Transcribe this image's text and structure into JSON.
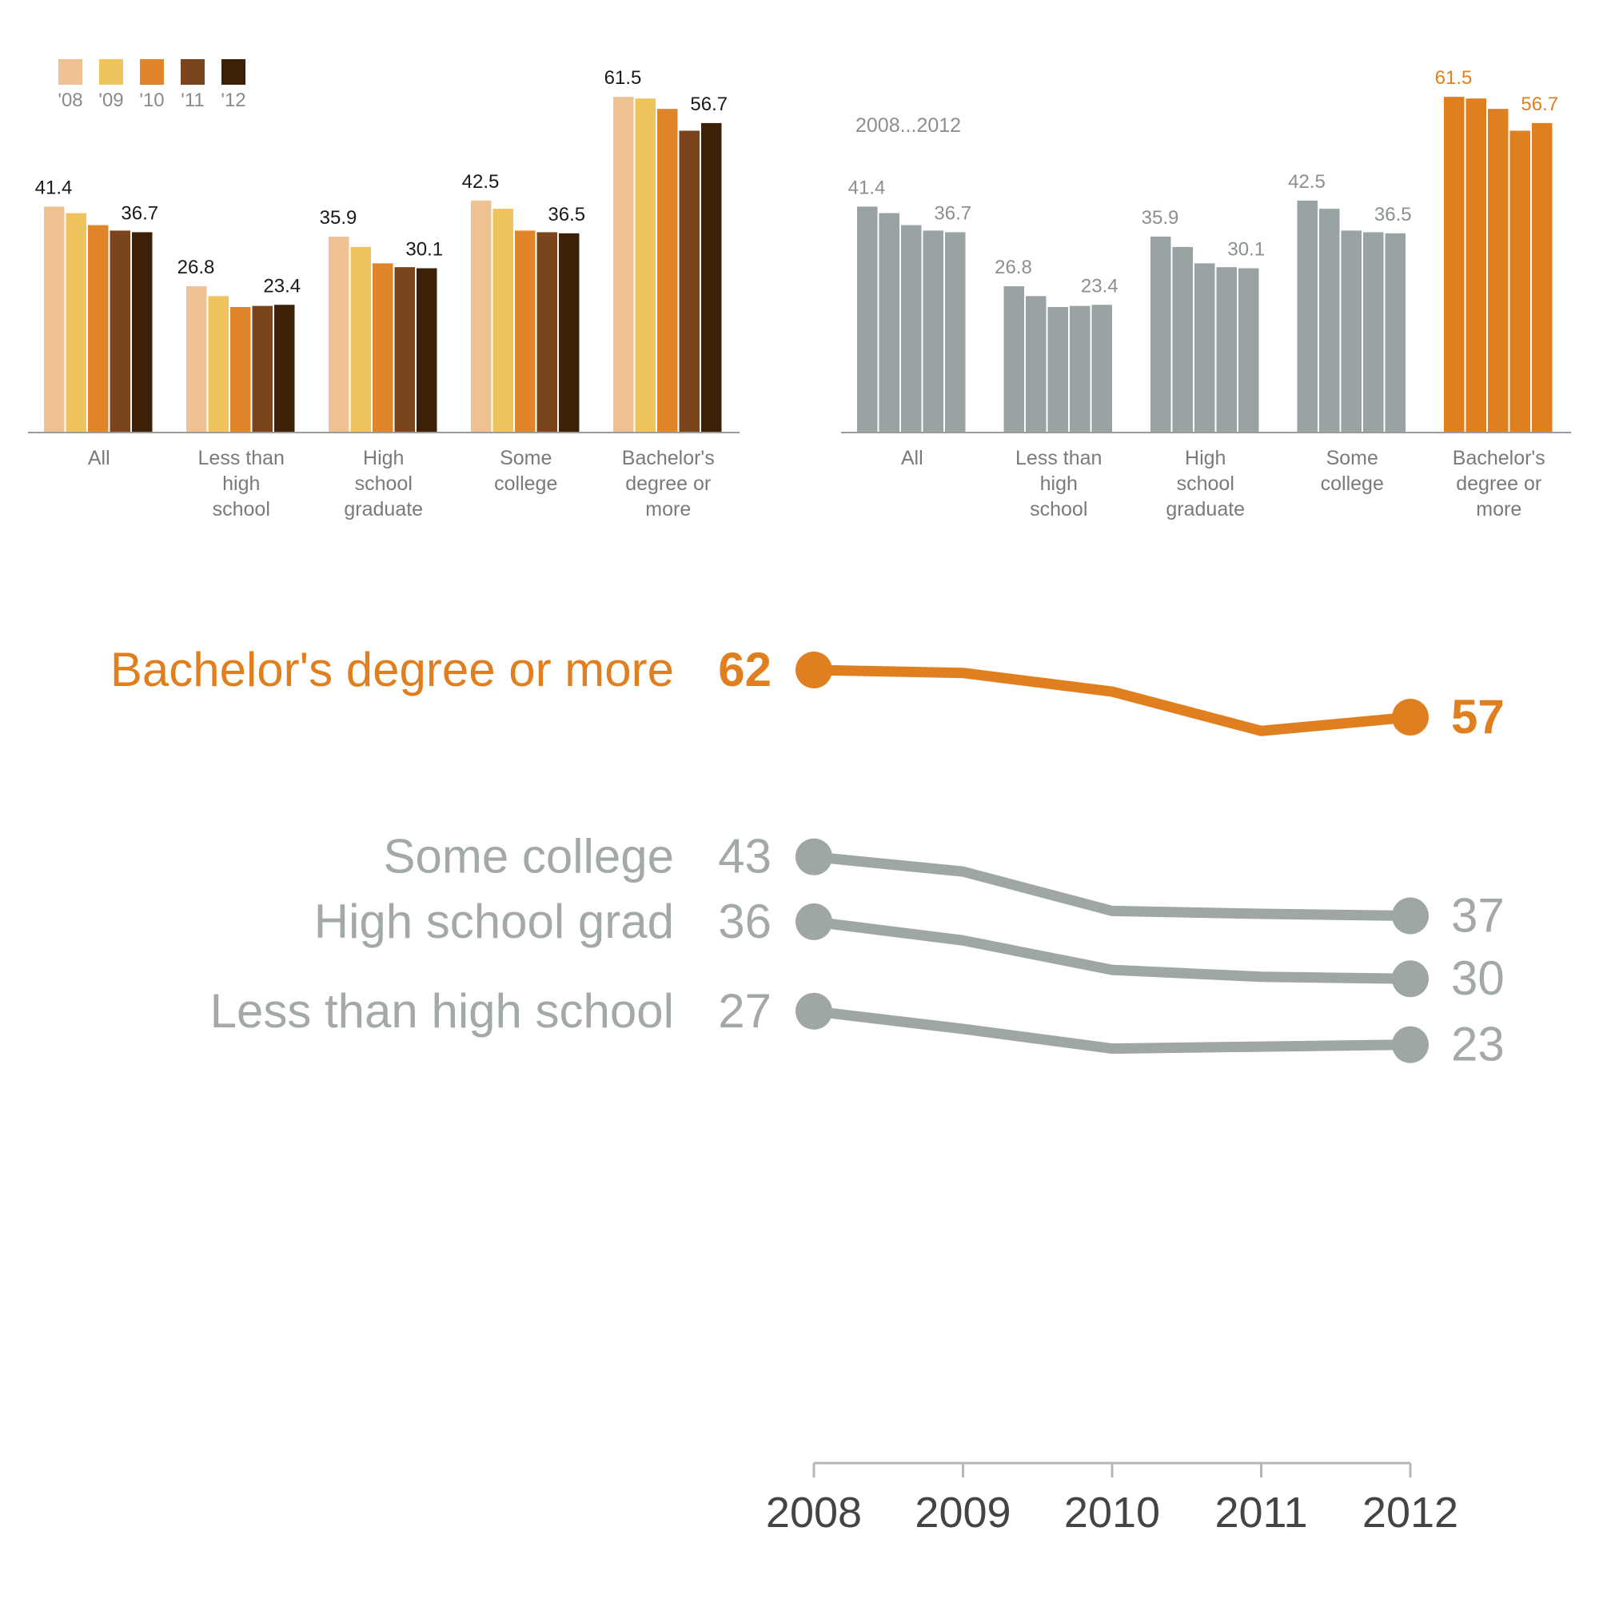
{
  "chart_data": [
    {
      "type": "bar",
      "legend": {
        "placement": "top-left",
        "labels": [
          "'08",
          "'09",
          "'10",
          "'11",
          "'12"
        ]
      },
      "categories": [
        "All",
        "Less than high school",
        "High school graduate",
        "Some college",
        "Bachelor's degree or more"
      ],
      "category_lines": [
        [
          "All"
        ],
        [
          "Less than",
          "high",
          "school"
        ],
        [
          "High",
          "school",
          "graduate"
        ],
        [
          "Some",
          "college"
        ],
        [
          "Bachelor's",
          "degree or",
          "more"
        ]
      ],
      "series": [
        {
          "name": "'08",
          "color": "#eec293",
          "values": [
            41.4,
            26.8,
            35.9,
            42.5,
            61.5
          ]
        },
        {
          "name": "'09",
          "color": "#f0c45c",
          "values": [
            40.2,
            25.0,
            34.0,
            41.0,
            61.2
          ]
        },
        {
          "name": "'10",
          "color": "#e0852a",
          "values": [
            38.0,
            23.0,
            31.0,
            37.0,
            59.3
          ]
        },
        {
          "name": "'11",
          "color": "#7a441c",
          "values": [
            37.0,
            23.2,
            30.3,
            36.7,
            55.3
          ]
        },
        {
          "name": "'12",
          "color": "#3d2008",
          "values": [
            36.7,
            23.4,
            30.1,
            36.5,
            56.7
          ]
        }
      ],
      "ylim": [
        0,
        75
      ],
      "grid": false
    },
    {
      "type": "bar",
      "annotation": "2008...2012",
      "categories": [
        "All",
        "Less than high school",
        "High school graduate",
        "Some college",
        "Bachelor's degree or more"
      ],
      "category_lines": [
        [
          "All"
        ],
        [
          "Less than",
          "high",
          "school"
        ],
        [
          "High",
          "school",
          "graduate"
        ],
        [
          "Some",
          "college"
        ],
        [
          "Bachelor's",
          "degree or",
          "more"
        ]
      ],
      "series": [
        {
          "name": "2008",
          "values": [
            41.4,
            26.8,
            35.9,
            42.5,
            61.5
          ]
        },
        {
          "name": "2009",
          "values": [
            40.2,
            25.0,
            34.0,
            41.0,
            61.2
          ]
        },
        {
          "name": "2010",
          "values": [
            38.0,
            23.0,
            31.0,
            37.0,
            59.3
          ]
        },
        {
          "name": "2011",
          "values": [
            37.0,
            23.2,
            30.3,
            36.7,
            55.3
          ]
        },
        {
          "name": "2012",
          "values": [
            36.7,
            23.4,
            30.1,
            36.5,
            56.7
          ]
        }
      ],
      "colors": {
        "default": "#99a3a3",
        "highlight": "#e07f1f",
        "highlight_category": "Bachelor's degree or more"
      },
      "ylim": [
        0,
        75
      ],
      "grid": false
    },
    {
      "type": "line",
      "x": [
        2008,
        2009,
        2010,
        2011,
        2012
      ],
      "series": [
        {
          "name": "Bachelor's degree or more",
          "values": [
            61.5,
            61.2,
            59.3,
            55.3,
            56.7
          ],
          "start_label": "62",
          "end_label": "57",
          "color": "#e07f1f"
        },
        {
          "name": "Some college",
          "values": [
            42.5,
            41.0,
            37.0,
            36.7,
            36.5
          ],
          "start_label": "43",
          "end_label": "37",
          "color": "#9ea6a6"
        },
        {
          "name": "High school grad",
          "values": [
            35.9,
            34.0,
            31.0,
            30.3,
            30.1
          ],
          "start_label": "36",
          "end_label": "30",
          "color": "#9ea6a6"
        },
        {
          "name": "Less than high school",
          "values": [
            26.8,
            25.0,
            23.0,
            23.2,
            23.4
          ],
          "start_label": "27",
          "end_label": "23",
          "color": "#9ea6a6"
        }
      ],
      "ylim": [
        20,
        65
      ],
      "grid": false
    }
  ]
}
